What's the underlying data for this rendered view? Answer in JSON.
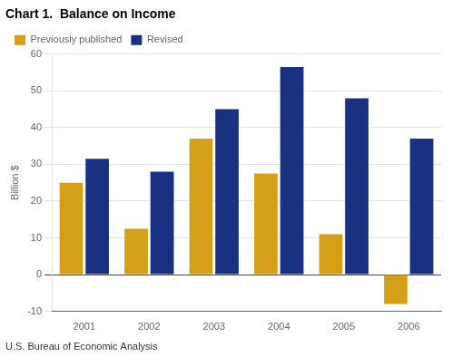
{
  "chart_data": {
    "type": "bar",
    "title": "Chart 1.  Balance on Income",
    "ylabel": "Billion $",
    "annotations": [
      "U.S. Bureau of Economic Analysis"
    ],
    "categories": [
      "2001",
      "2002",
      "2003",
      "2004",
      "2005",
      "2006"
    ],
    "series": [
      {
        "name": "Previously published",
        "color": "#D4A017",
        "values": [
          25,
          12.5,
          37,
          27.5,
          11,
          -8
        ]
      },
      {
        "name": "Revised",
        "color": "#1A3080",
        "values": [
          31.5,
          28,
          45,
          56.5,
          48,
          37
        ]
      }
    ],
    "ylim": [
      -10,
      60
    ],
    "yticks": [
      -10,
      0,
      10,
      20,
      30,
      40,
      50,
      60
    ],
    "grid": true,
    "legend": "upper left"
  }
}
